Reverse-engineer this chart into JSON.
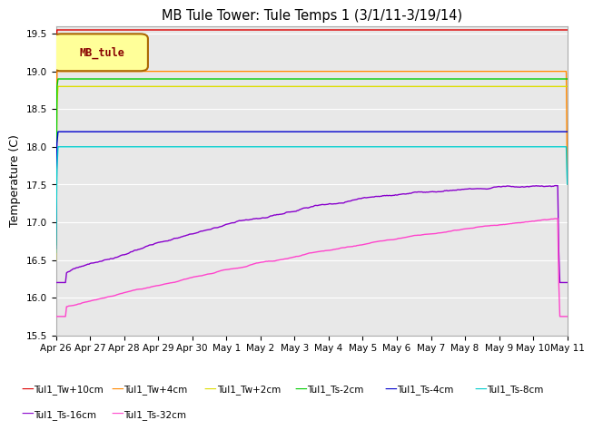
{
  "title": "MB Tule Tower: Tule Temps 1 (3/1/11-3/19/14)",
  "ylabel": "Temperature (C)",
  "ylim": [
    15.5,
    19.6
  ],
  "yticks": [
    15.5,
    16.0,
    16.5,
    17.0,
    17.5,
    18.0,
    18.5,
    19.0,
    19.5
  ],
  "bg_color": "#e8e8e8",
  "grid_color": "white",
  "series_colors": {
    "Tul1_Tw+10cm": "#dd0000",
    "Tul1_Tw+4cm": "#ff8800",
    "Tul1_Tw+2cm": "#dddd00",
    "Tul1_Ts-2cm": "#00cc00",
    "Tul1_Ts-4cm": "#0000cc",
    "Tul1_Ts-8cm": "#00cccc",
    "Tul1_Ts-16cm": "#8800cc",
    "Tul1_Ts-32cm": "#ff44cc"
  },
  "legend_box_color": "#ffff99",
  "legend_box_border": "#aa6600",
  "legend_text_color": "#880000",
  "legend_label": "MB_tule",
  "x_tick_labels": [
    "Apr 26",
    "Apr 27",
    "Apr 28",
    "Apr 29",
    "Apr 30",
    "May 1",
    "May 2",
    "May 3",
    "May 4",
    "May 5",
    "May 6",
    "May 7",
    "May 8",
    "May 9",
    "May 10",
    "May 11"
  ],
  "n_points": 480
}
